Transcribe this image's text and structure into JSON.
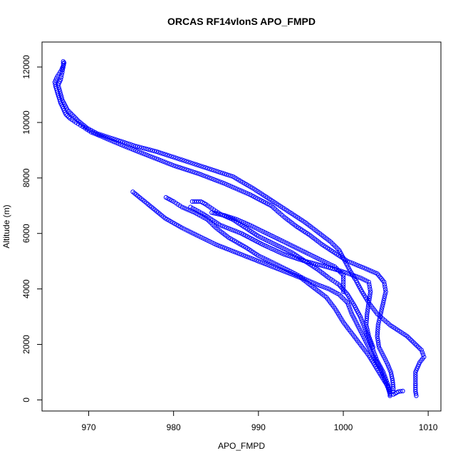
{
  "chart_data": {
    "type": "scatter",
    "title": "ORCAS RF14vlonS APO_FMPD",
    "xlabel": "APO_FMPD",
    "ylabel": "Altitude (m)",
    "xlim": [
      964.5,
      1011.5
    ],
    "ylim": [
      -400,
      12900
    ],
    "xticks": [
      970,
      980,
      990,
      1000,
      1010
    ],
    "yticks": [
      0,
      2000,
      4000,
      6000,
      8000,
      10000,
      12000
    ],
    "marker": "open-circle",
    "point_color": "#0000ff",
    "grid": false,
    "legend": "none",
    "series": [
      {
        "segments": [
          [
            [
              967.0,
              12200
            ],
            [
              967.0,
              12050
            ],
            [
              966.8,
              11900
            ],
            [
              966.5,
              11750
            ],
            [
              966.2,
              11600
            ],
            [
              966.0,
              11450
            ],
            [
              966.1,
              11300
            ],
            [
              966.3,
              11100
            ],
            [
              966.5,
              10900
            ],
            [
              966.7,
              10700
            ],
            [
              967.0,
              10500
            ],
            [
              967.3,
              10300
            ],
            [
              967.8,
              10150
            ],
            [
              968.5,
              10000
            ],
            [
              969.3,
              9850
            ],
            [
              970.3,
              9650
            ],
            [
              971.5,
              9500
            ],
            [
              973.0,
              9300
            ],
            [
              975.0,
              9050
            ],
            [
              977.5,
              8750
            ],
            [
              980.0,
              8450
            ],
            [
              983.0,
              8150
            ],
            [
              986.0,
              7800
            ],
            [
              989.0,
              7400
            ],
            [
              991.5,
              7000
            ],
            [
              993.0,
              6600
            ],
            [
              994.5,
              6250
            ],
            [
              996.0,
              5950
            ],
            [
              997.5,
              5600
            ],
            [
              999.0,
              5300
            ],
            [
              1000.5,
              5000
            ],
            [
              1002.5,
              4750
            ],
            [
              1004.0,
              4550
            ],
            [
              1004.8,
              4250
            ],
            [
              1005.0,
              3900
            ],
            [
              1004.7,
              3500
            ],
            [
              1004.4,
              3100
            ],
            [
              1004.1,
              2700
            ],
            [
              1004.0,
              2300
            ],
            [
              1004.2,
              1900
            ],
            [
              1004.7,
              1600
            ],
            [
              1005.2,
              1300
            ],
            [
              1005.6,
              1000
            ],
            [
              1005.8,
              700
            ],
            [
              1005.9,
              400
            ],
            [
              1005.9,
              200
            ],
            [
              1006.5,
              300
            ],
            [
              1007.0,
              320
            ]
          ],
          [
            [
              967.1,
              12150
            ],
            [
              966.7,
              11550
            ],
            [
              966.4,
              11350
            ],
            [
              966.9,
              10800
            ],
            [
              967.5,
              10450
            ],
            [
              968.8,
              10050
            ],
            [
              969.8,
              9800
            ],
            [
              971.0,
              9600
            ],
            [
              972.0,
              9500
            ],
            [
              973.5,
              9350
            ],
            [
              975.5,
              9150
            ],
            [
              978.0,
              8950
            ],
            [
              981.0,
              8650
            ],
            [
              984.0,
              8350
            ],
            [
              987.0,
              8050
            ],
            [
              989.5,
              7600
            ],
            [
              991.5,
              7200
            ],
            [
              993.5,
              6800
            ],
            [
              995.5,
              6400
            ],
            [
              997.0,
              6050
            ],
            [
              998.5,
              5700
            ],
            [
              999.5,
              5400
            ],
            [
              1000.2,
              5000
            ],
            [
              1000.8,
              4650
            ],
            [
              1001.5,
              4300
            ],
            [
              1002.2,
              3900
            ],
            [
              1003.0,
              3500
            ],
            [
              1004.0,
              3100
            ],
            [
              1005.5,
              2700
            ],
            [
              1007.5,
              2300
            ],
            [
              1009.2,
              1800
            ],
            [
              1009.5,
              1550
            ],
            [
              1009.0,
              1350
            ],
            [
              1008.5,
              1000
            ],
            [
              1008.5,
              600
            ],
            [
              1008.5,
              300
            ],
            [
              1008.6,
              150
            ]
          ],
          [
            [
              975.2,
              7500
            ],
            [
              976.0,
              7300
            ],
            [
              977.0,
              7050
            ],
            [
              978.0,
              6800
            ],
            [
              979.0,
              6550
            ],
            [
              981.0,
              6200
            ],
            [
              983.0,
              5900
            ],
            [
              985.0,
              5600
            ],
            [
              987.5,
              5300
            ],
            [
              990.0,
              5000
            ],
            [
              992.5,
              4700
            ],
            [
              995.0,
              4400
            ],
            [
              996.5,
              4050
            ],
            [
              998.0,
              3700
            ],
            [
              999.0,
              3300
            ],
            [
              1000.0,
              2800
            ],
            [
              1001.0,
              2400
            ],
            [
              1002.0,
              2000
            ],
            [
              1003.0,
              1600
            ],
            [
              1003.8,
              1200
            ],
            [
              1004.6,
              800
            ],
            [
              1005.2,
              500
            ],
            [
              1005.5,
              300
            ],
            [
              1005.5,
              150
            ]
          ],
          [
            [
              979.1,
              7300
            ],
            [
              980.0,
              7150
            ],
            [
              981.0,
              6950
            ],
            [
              982.5,
              6750
            ],
            [
              984.0,
              6500
            ],
            [
              985.0,
              6200
            ],
            [
              986.5,
              5850
            ],
            [
              988.5,
              5500
            ],
            [
              990.0,
              5200
            ],
            [
              992.0,
              4900
            ],
            [
              994.0,
              4600
            ],
            [
              995.5,
              4350
            ],
            [
              997.0,
              4150
            ],
            [
              998.3,
              4000
            ],
            [
              999.5,
              3800
            ],
            [
              1000.5,
              3500
            ],
            [
              1001.0,
              3100
            ],
            [
              1001.5,
              2800
            ],
            [
              1002.0,
              2500
            ],
            [
              1002.5,
              2200
            ],
            [
              1003.0,
              1900
            ],
            [
              1003.5,
              1600
            ],
            [
              1004.2,
              1200
            ],
            [
              1004.8,
              800
            ],
            [
              1005.3,
              400
            ],
            [
              1005.5,
              200
            ]
          ],
          [
            [
              982.2,
              7150
            ],
            [
              983.2,
              7150
            ],
            [
              983.8,
              7050
            ],
            [
              984.5,
              6900
            ],
            [
              985.5,
              6700
            ],
            [
              987.0,
              6500
            ],
            [
              988.5,
              6200
            ],
            [
              990.0,
              5900
            ],
            [
              992.0,
              5600
            ],
            [
              994.0,
              5300
            ],
            [
              995.5,
              5000
            ],
            [
              997.0,
              4700
            ],
            [
              998.3,
              4400
            ],
            [
              999.5,
              4150
            ],
            [
              1000.5,
              3800
            ],
            [
              1001.3,
              3400
            ],
            [
              1002.0,
              3000
            ],
            [
              1002.5,
              2600
            ],
            [
              1003.0,
              2200
            ],
            [
              1003.5,
              1800
            ],
            [
              1004.0,
              1400
            ],
            [
              1004.7,
              1000
            ],
            [
              1005.2,
              600
            ],
            [
              1005.5,
              300
            ]
          ],
          [
            [
              984.5,
              6750
            ],
            [
              986.0,
              6650
            ],
            [
              987.5,
              6500
            ],
            [
              989.0,
              6300
            ],
            [
              991.0,
              6000
            ],
            [
              993.0,
              5700
            ],
            [
              995.0,
              5400
            ],
            [
              997.0,
              5100
            ],
            [
              999.0,
              4800
            ],
            [
              1000.0,
              4500
            ],
            [
              1000.0,
              4250
            ],
            [
              1000.0,
              3900
            ]
          ],
          [
            [
              982.0,
              6950
            ],
            [
              983.5,
              6700
            ],
            [
              985.5,
              6300
            ],
            [
              988.0,
              6000
            ],
            [
              990.5,
              5600
            ],
            [
              993.0,
              5250
            ],
            [
              995.5,
              5000
            ],
            [
              998.0,
              4800
            ],
            [
              1000.2,
              4600
            ],
            [
              1002.0,
              4400
            ],
            [
              1003.0,
              4250
            ],
            [
              1003.2,
              3900
            ],
            [
              1003.0,
              3500
            ],
            [
              1002.8,
              3100
            ],
            [
              1002.7,
              2700
            ],
            [
              1003.0,
              2300
            ],
            [
              1003.5,
              1900
            ]
          ]
        ]
      }
    ]
  }
}
